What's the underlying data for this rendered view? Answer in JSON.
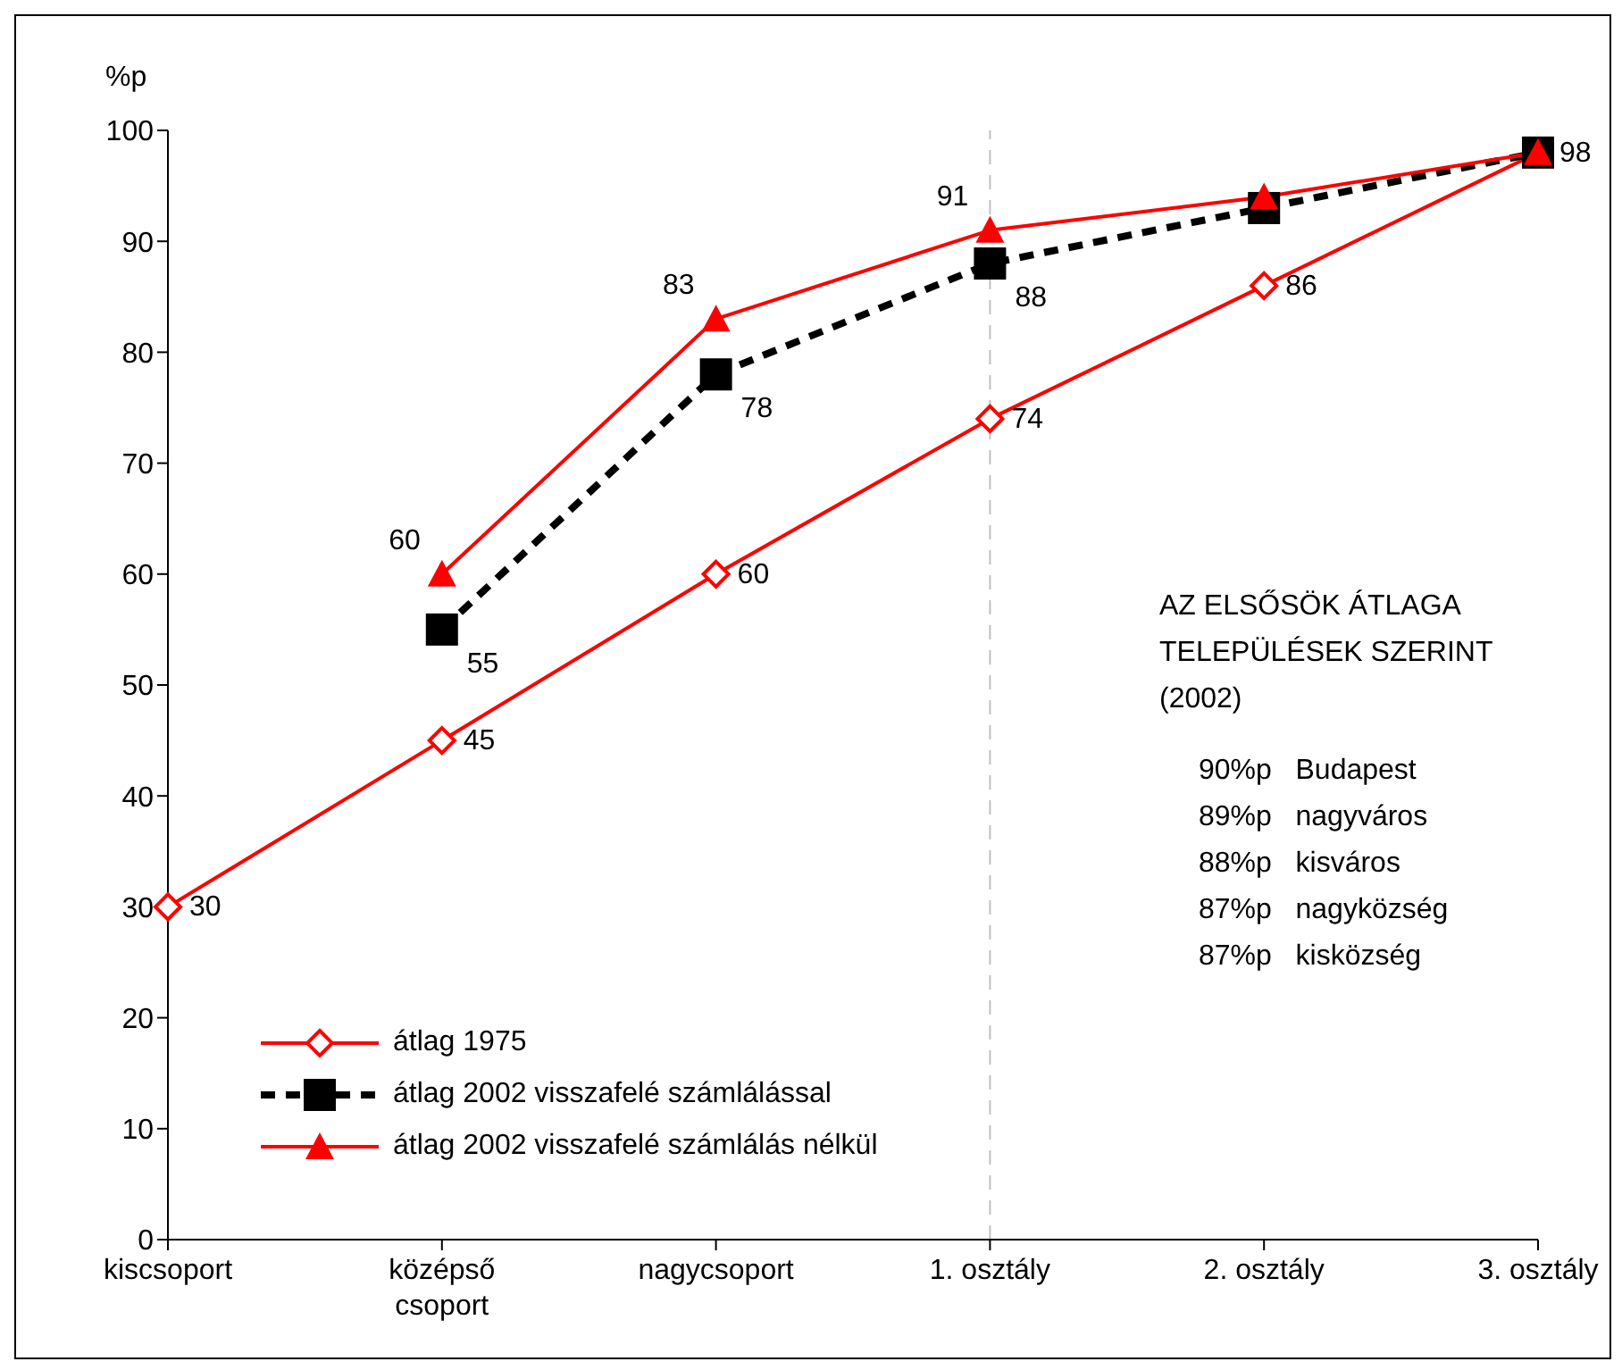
{
  "chart_data": {
    "type": "line",
    "ylabel": "%p",
    "categories": [
      "kiscsoport",
      "középső csoport",
      "nagycsoport",
      "1. osztály",
      "2. osztály",
      "3. osztály"
    ],
    "series": [
      {
        "name": "átlag 1975",
        "color": "#ff0000",
        "marker": "diamond",
        "line_style": "solid",
        "values": [
          30,
          45,
          60,
          74,
          86,
          98
        ],
        "value_labels": [
          "30",
          "45",
          "60",
          "74",
          "86",
          "98"
        ]
      },
      {
        "name": "átlag 2002 visszafelé számlálással",
        "color": "#000000",
        "marker": "square",
        "line_style": "dashed",
        "values": [
          null,
          55,
          78,
          88,
          93,
          98
        ],
        "value_labels": [
          null,
          "55",
          "78",
          "88",
          null,
          null
        ]
      },
      {
        "name": "átlag 2002 visszafelé számlálás nélkül",
        "color": "#ff0000",
        "marker": "triangle",
        "line_style": "solid",
        "values": [
          null,
          60,
          83,
          91,
          94,
          98
        ],
        "value_labels": [
          null,
          "60",
          "83",
          "91",
          null,
          null
        ]
      }
    ],
    "ylim": [
      0,
      100
    ],
    "yticks": [
      0,
      10,
      20,
      30,
      40,
      50,
      60,
      70,
      80,
      90,
      100
    ],
    "grid": false,
    "legend": "bottom left",
    "ref_lines": [
      {
        "axis": "x",
        "value": "1. osztály",
        "color": "#c0c0c0",
        "line_style": "dashed"
      }
    ],
    "annotations": [
      "AZ ELSŐSÖK ÁTLAGA TELEPÜLÉSEK SZERINT (2002)",
      "90%p   Budapest",
      "89%p   nagyváros",
      "88%p   kisváros",
      "87%p   nagyközség",
      "87%p   kisközség"
    ]
  }
}
